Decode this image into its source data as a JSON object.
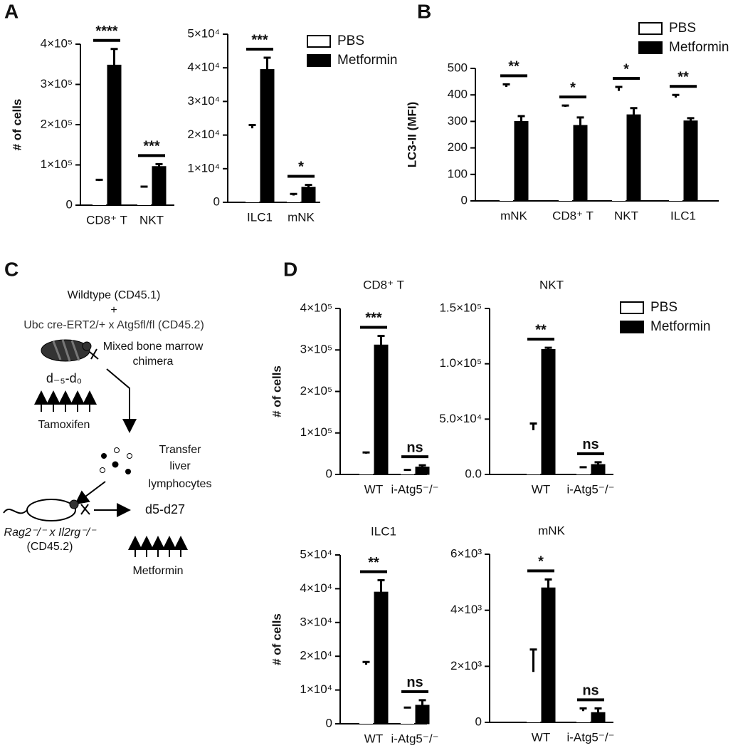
{
  "panel_labels": [
    "A",
    "B",
    "C",
    "D"
  ],
  "chart_data": [
    {
      "type": "bar",
      "ylabel": "# of cells",
      "categories": [
        "CD8⁺ T",
        "NKT"
      ],
      "series": [
        {
          "color": "#ffffff",
          "values": [
            60000,
            44000
          ],
          "errors": [
            3000,
            2000
          ]
        },
        {
          "color": "#000000",
          "values": [
            348000,
            96000
          ],
          "errors": [
            40000,
            6000
          ]
        }
      ],
      "significance": [
        "****",
        "***"
      ],
      "ylim": [
        0,
        400000
      ],
      "yticks": [
        0,
        {
          "value": 100000,
          "label": "1×10⁵"
        },
        {
          "value": 200000,
          "label": "2×10⁵"
        },
        {
          "value": 300000,
          "label": "3×10⁵"
        },
        {
          "value": 400000,
          "label": "4×10⁵"
        }
      ]
    },
    {
      "type": "bar",
      "categories": [
        "ILC1",
        "mNK"
      ],
      "series": [
        {
          "name": "PBS",
          "color": "#ffffff",
          "values": [
            22000,
            2000
          ],
          "errors": [
            1000,
            500
          ]
        },
        {
          "name": "Metformin",
          "color": "#000000",
          "values": [
            39500,
            4500
          ],
          "errors": [
            3500,
            700
          ]
        }
      ],
      "significance": [
        "***",
        "*"
      ],
      "ylim": [
        0,
        50000
      ],
      "yticks": [
        0,
        {
          "value": 10000,
          "label": "1×10⁴"
        },
        {
          "value": 20000,
          "label": "2×10⁴"
        },
        {
          "value": 30000,
          "label": "3×10⁴"
        },
        {
          "value": 40000,
          "label": "4×10⁴"
        },
        {
          "value": 50000,
          "label": "5×10⁴"
        }
      ],
      "legend": "upper right"
    },
    {
      "type": "bar",
      "ylabel": "LC3-II (MFI)",
      "categories": [
        "mNK",
        "CD8⁺ T",
        "NKT",
        "ILC1"
      ],
      "series": [
        {
          "name": "PBS",
          "color": "#ffffff",
          "values": [
            430,
            355,
            415,
            390
          ],
          "errors": [
            10,
            5,
            15,
            10
          ]
        },
        {
          "name": "Metformin",
          "color": "#000000",
          "values": [
            300,
            285,
            325,
            302
          ],
          "errors": [
            20,
            30,
            25,
            10
          ]
        }
      ],
      "significance": [
        "**",
        "*",
        "*",
        "**"
      ],
      "ylim": [
        0,
        500
      ],
      "yticks": [
        0,
        100,
        200,
        300,
        400,
        500
      ],
      "legend": "upper right"
    },
    {
      "type": "bar",
      "title": "CD8⁺ T",
      "ylabel": "# of cells",
      "categories": [
        "WT",
        "i-Atg5⁻/⁻"
      ],
      "series": [
        {
          "color": "#ffffff",
          "values": [
            50000,
            10000
          ],
          "errors": [
            3000,
            1000
          ]
        },
        {
          "color": "#000000",
          "values": [
            312000,
            18000
          ],
          "errors": [
            22000,
            4000
          ]
        }
      ],
      "significance": [
        "***",
        "ns"
      ],
      "ylim": [
        0,
        400000
      ],
      "yticks": [
        0,
        {
          "value": 100000,
          "label": "1×10⁵"
        },
        {
          "value": 200000,
          "label": "2×10⁵"
        },
        {
          "value": 300000,
          "label": "3×10⁵"
        },
        {
          "value": 400000,
          "label": "4×10⁵"
        }
      ]
    },
    {
      "type": "bar",
      "title": "NKT",
      "categories": [
        "WT",
        "i-Atg5⁻/⁻"
      ],
      "series": [
        {
          "name": "PBS",
          "color": "#ffffff",
          "values": [
            40000,
            6000
          ],
          "errors": [
            6000,
            500
          ]
        },
        {
          "name": "Metformin",
          "color": "#000000",
          "values": [
            113000,
            9000
          ],
          "errors": [
            1500,
            2000
          ]
        }
      ],
      "significance": [
        "**",
        "ns"
      ],
      "ylim": [
        0,
        150000
      ],
      "yticks": [
        {
          "value": 0,
          "label": "0.0"
        },
        {
          "value": 50000,
          "label": "5.0×10⁴"
        },
        {
          "value": 100000,
          "label": "1.0×10⁵"
        },
        {
          "value": 150000,
          "label": "1.5×10⁵"
        }
      ],
      "legend": "upper right"
    },
    {
      "type": "bar",
      "title": "ILC1",
      "ylabel": "# of cells",
      "categories": [
        "WT",
        "i-Atg5⁻/⁻"
      ],
      "series": [
        {
          "color": "#ffffff",
          "values": [
            17500,
            4500
          ],
          "errors": [
            800,
            300
          ]
        },
        {
          "color": "#000000",
          "values": [
            39000,
            5500
          ],
          "errors": [
            3500,
            1500
          ]
        }
      ],
      "significance": [
        "**",
        "ns"
      ],
      "ylim": [
        0,
        50000
      ],
      "yticks": [
        0,
        {
          "value": 10000,
          "label": "1×10⁴"
        },
        {
          "value": 20000,
          "label": "2×10⁴"
        },
        {
          "value": 30000,
          "label": "3×10⁴"
        },
        {
          "value": 40000,
          "label": "4×10⁴"
        },
        {
          "value": 50000,
          "label": "5×10⁴"
        }
      ]
    },
    {
      "type": "bar",
      "title": "mNK",
      "categories": [
        "WT",
        "i-Atg5⁻/⁻"
      ],
      "series": [
        {
          "color": "#ffffff",
          "values": [
            1800,
            400
          ],
          "errors": [
            800,
            100
          ]
        },
        {
          "color": "#000000",
          "values": [
            4800,
            350
          ],
          "errors": [
            300,
            150
          ]
        }
      ],
      "significance": [
        "*",
        "ns"
      ],
      "ylim": [
        0,
        6000
      ],
      "yticks": [
        0,
        {
          "value": 2000,
          "label": "2×10³"
        },
        {
          "value": 4000,
          "label": "4×10³"
        },
        {
          "value": 6000,
          "label": "6×10³"
        }
      ]
    }
  ],
  "diagram": {
    "donor_1": "Wildtype (CD45.1)",
    "plus": "+",
    "donor_2": "Ubc cre-ERT2/+ x Atg5fl/fl  (CD45.2)",
    "chimera": [
      "Mixed bone marrow",
      "chimera"
    ],
    "tamoxifen_days": "d₋₅-d₀",
    "tamoxifen": "Tamoxifen",
    "transfer": [
      "Transfer",
      "liver",
      "lymphocytes"
    ],
    "recipient": [
      "Rag2⁻/⁻ x Il2rg⁻/⁻",
      "(CD45.2)"
    ],
    "metformin_days": "d5-d27",
    "metformin": "Metformin"
  }
}
